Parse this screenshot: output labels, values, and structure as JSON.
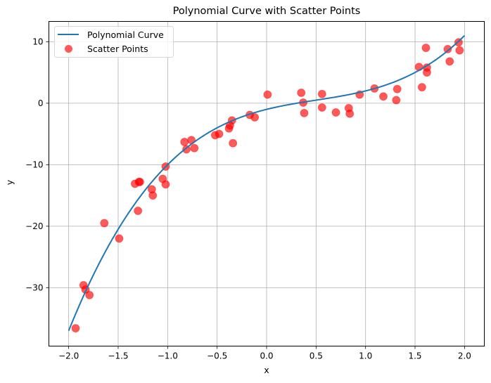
{
  "chart_data": {
    "type": "scatter",
    "title": "Polynomial Curve with Scatter Points",
    "xlabel": "x",
    "ylabel": "y",
    "xlim": [
      -2.2,
      2.2
    ],
    "ylim": [
      -39.5,
      13.3
    ],
    "xticks": [
      -2.0,
      -1.5,
      -1.0,
      -0.5,
      0.0,
      0.5,
      1.0,
      1.5,
      2.0
    ],
    "xtick_labels": [
      "−2.0",
      "−1.5",
      "−1.0",
      "−0.5",
      "0.0",
      "0.5",
      "1.0",
      "1.5",
      "2.0"
    ],
    "yticks": [
      -30,
      -20,
      -10,
      0,
      10
    ],
    "ytick_labels": [
      "−30",
      "−20",
      "−10",
      "0",
      "10"
    ],
    "grid": true,
    "legend_position": "upper left",
    "series": [
      {
        "name": "Polynomial Curve",
        "type": "line",
        "color": "#1f77b4",
        "formula": "2x^3 - 3x^2 + 4x - 1",
        "coefficients": [
          2,
          -3,
          4,
          -1
        ],
        "x_range": [
          -2,
          2
        ]
      },
      {
        "name": "Scatter Points",
        "type": "scatter",
        "color": "#ff0000",
        "alpha": 0.65,
        "x": [
          -1.93,
          -1.85,
          -1.83,
          -1.79,
          -1.64,
          -1.49,
          -1.33,
          -1.3,
          -1.29,
          -1.28,
          -1.16,
          -1.15,
          -1.05,
          -1.02,
          -1.02,
          -0.83,
          -0.81,
          -0.76,
          -0.73,
          -0.52,
          -0.48,
          -0.38,
          -0.37,
          -0.35,
          -0.34,
          -0.17,
          -0.12,
          0.01,
          0.35,
          0.37,
          0.38,
          0.56,
          0.56,
          0.7,
          0.83,
          0.84,
          0.94,
          1.09,
          1.18,
          1.31,
          1.32,
          1.54,
          1.57,
          1.61,
          1.62,
          1.62,
          1.83,
          1.85,
          1.94,
          1.95
        ],
        "y": [
          -36.6,
          -29.6,
          -30.3,
          -31.2,
          -19.5,
          -22.0,
          -13.1,
          -17.5,
          -12.8,
          -12.8,
          -14.0,
          -15.0,
          -12.3,
          -13.2,
          -10.3,
          -6.3,
          -7.5,
          -6.0,
          -7.3,
          -5.2,
          -5.0,
          -4.1,
          -3.6,
          -2.8,
          -6.5,
          -1.9,
          -2.3,
          1.4,
          1.7,
          0.1,
          -1.6,
          1.5,
          -0.7,
          -1.5,
          -0.8,
          -1.7,
          1.4,
          2.4,
          1.1,
          0.5,
          2.3,
          5.9,
          2.6,
          9.0,
          5.8,
          5.0,
          8.8,
          6.8,
          9.9,
          8.6
        ]
      }
    ]
  },
  "legend": {
    "items": [
      {
        "label": "Polynomial Curve"
      },
      {
        "label": "Scatter Points"
      }
    ]
  }
}
